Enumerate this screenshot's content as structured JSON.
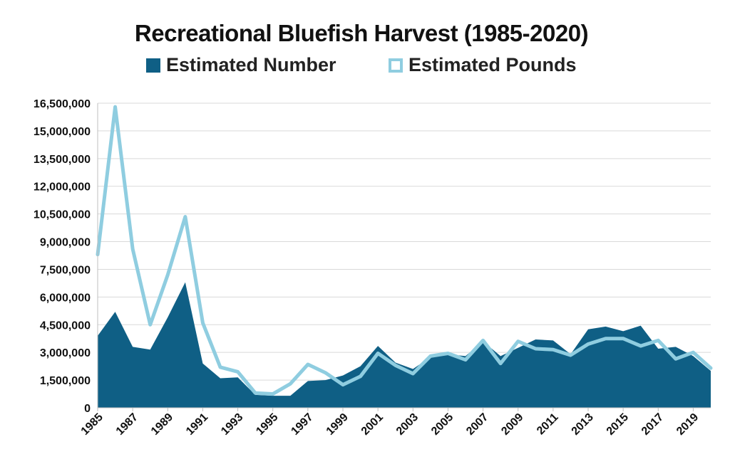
{
  "chart_data": {
    "type": "area",
    "title": "Recreational Bluefish Harvest (1985-2020)",
    "x": [
      1985,
      1986,
      1987,
      1988,
      1989,
      1990,
      1991,
      1992,
      1993,
      1994,
      1995,
      1996,
      1997,
      1998,
      1999,
      2000,
      2001,
      2002,
      2003,
      2004,
      2005,
      2006,
      2007,
      2008,
      2009,
      2010,
      2011,
      2012,
      2013,
      2014,
      2015,
      2016,
      2017,
      2018,
      2019,
      2020
    ],
    "x_tick_labels": [
      "1985",
      "1987",
      "1989",
      "1991",
      "1993",
      "1995",
      "1997",
      "1999",
      "2001",
      "2003",
      "2005",
      "2007",
      "2009",
      "2011",
      "2013",
      "2015",
      "2017",
      "2019"
    ],
    "y_tick_labels": [
      "0",
      "1,500,000",
      "3,000,000",
      "4,500,000",
      "6,000,000",
      "7,500,000",
      "9,000,000",
      "10,500,000",
      "12,000,000",
      "13,500,000",
      "15,000,000",
      "16,500,000"
    ],
    "ylim": [
      0,
      16500000
    ],
    "grid": true,
    "legend_position": "top",
    "series": [
      {
        "name": "Estimated Number",
        "style": "area",
        "color": "#0f5f85",
        "values": [
          3900000,
          5200000,
          3300000,
          3150000,
          4900000,
          6800000,
          2400000,
          1600000,
          1650000,
          700000,
          650000,
          650000,
          1450000,
          1500000,
          1750000,
          2250000,
          3350000,
          2450000,
          2100000,
          2750000,
          2900000,
          2800000,
          3600000,
          2800000,
          3250000,
          3700000,
          3650000,
          2900000,
          4250000,
          4400000,
          4150000,
          4450000,
          3200000,
          3300000,
          2800000,
          2000000
        ]
      },
      {
        "name": "Estimated Pounds",
        "style": "line",
        "color": "#8fcde0",
        "values": [
          8300000,
          16300000,
          8600000,
          4500000,
          7200000,
          10350000,
          4600000,
          2200000,
          1950000,
          800000,
          750000,
          1300000,
          2350000,
          1900000,
          1250000,
          1700000,
          2950000,
          2300000,
          1850000,
          2800000,
          2950000,
          2600000,
          3650000,
          2400000,
          3600000,
          3200000,
          3150000,
          2850000,
          3450000,
          3750000,
          3750000,
          3350000,
          3650000,
          2650000,
          3000000,
          2150000
        ]
      }
    ]
  }
}
